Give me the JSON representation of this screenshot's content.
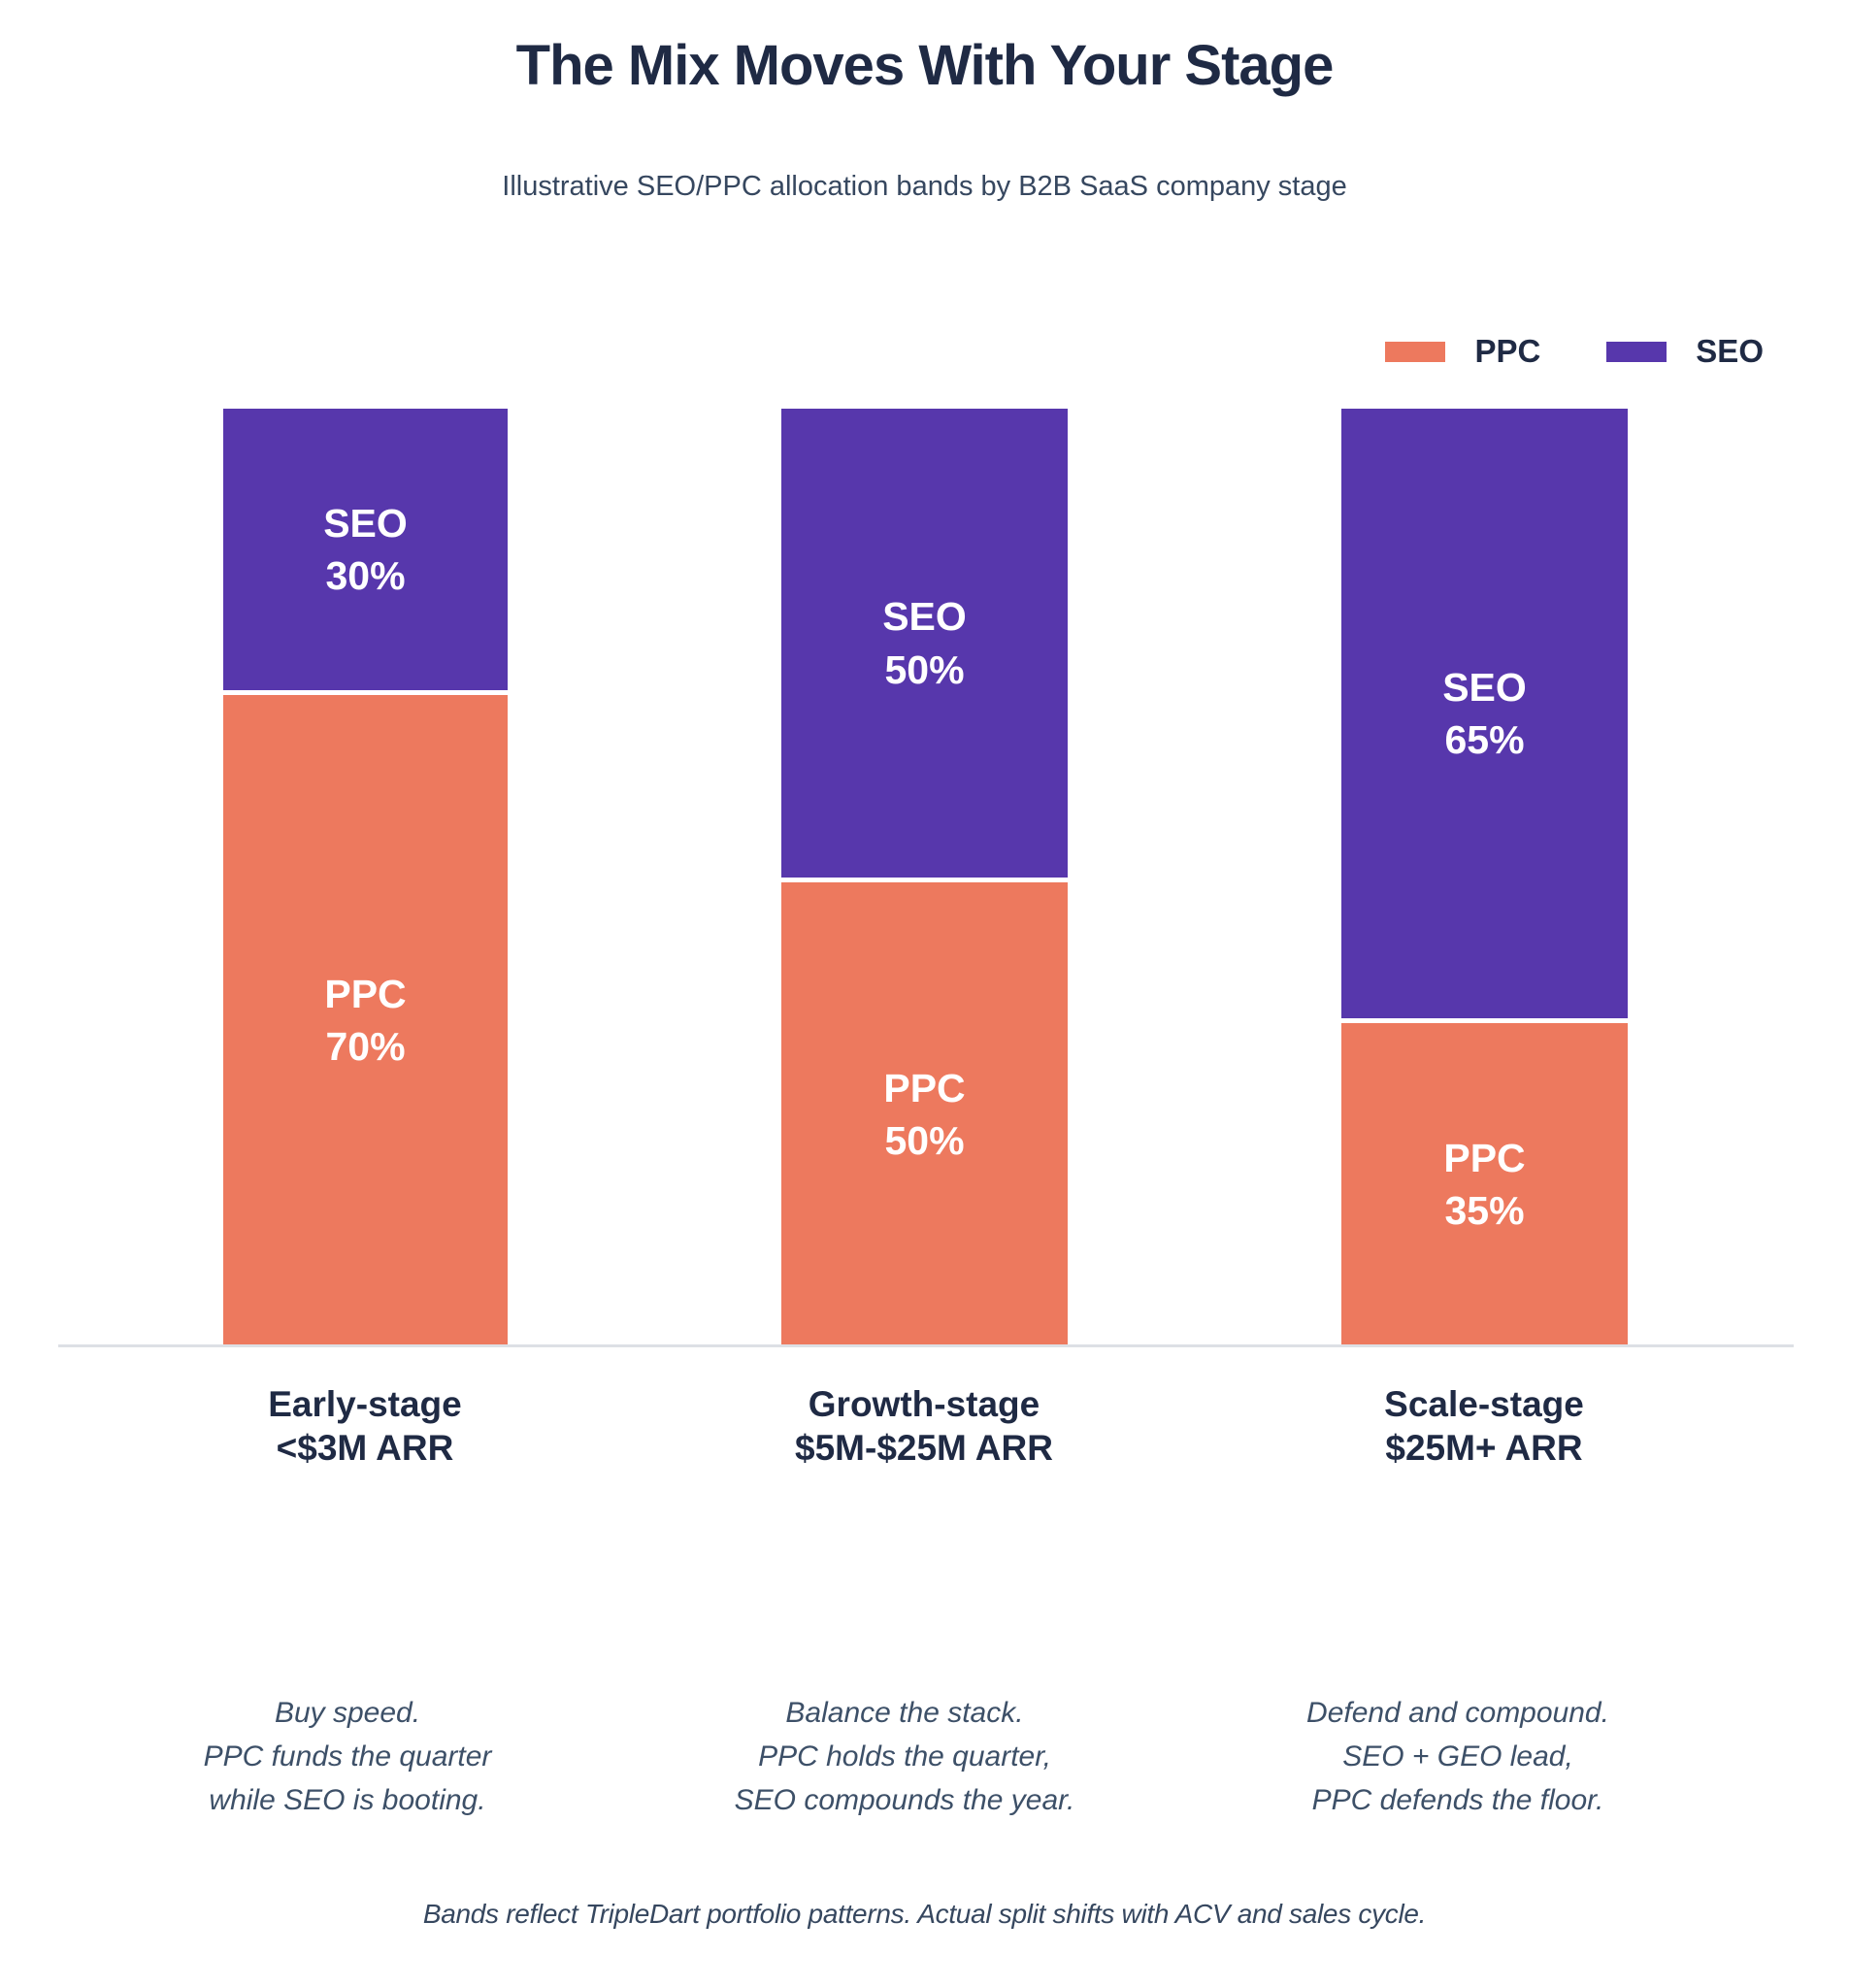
{
  "title": "The Mix Moves With Your Stage",
  "subtitle": "Illustrative SEO/PPC allocation bands by B2B SaaS company stage",
  "legend": {
    "ppc_label": "PPC",
    "seo_label": "SEO"
  },
  "colors": {
    "ppc": "#ED795E",
    "seo": "#5737AC",
    "title_text": "#1F2A44",
    "caption_text": "#3D5068",
    "axis_line": "#DDE0E5",
    "bar_value_text": "#FFFFFF"
  },
  "footer": "Bands reflect TripleDart portfolio patterns. Actual split shifts with ACV and sales cycle.",
  "chart_data": {
    "type": "bar",
    "stacked": true,
    "unit": "%",
    "ylim": [
      0,
      100
    ],
    "grid": false,
    "legend_position": "top-right",
    "x": [
      "Early-stage <$3M ARR",
      "Growth-stage $5M-$25M ARR",
      "Scale-stage $25M+ ARR"
    ],
    "series": [
      {
        "name": "PPC",
        "values": [
          70,
          50,
          35
        ]
      },
      {
        "name": "SEO",
        "values": [
          30,
          50,
          65
        ]
      }
    ],
    "bars": [
      {
        "stage": "Early-stage",
        "arr": "<$3M ARR",
        "seo_pct": 30,
        "ppc_pct": 70,
        "seo_label_line1": "SEO",
        "seo_label_line2": "30%",
        "ppc_label_line1": "PPC",
        "ppc_label_line2": "70%",
        "caption_lines": [
          "Buy speed.",
          "PPC funds the quarter",
          "while SEO is booting."
        ]
      },
      {
        "stage": "Growth-stage",
        "arr": "$5M-$25M ARR",
        "seo_pct": 50,
        "ppc_pct": 50,
        "seo_label_line1": "SEO",
        "seo_label_line2": "50%",
        "ppc_label_line1": "PPC",
        "ppc_label_line2": "50%",
        "caption_lines": [
          "Balance the stack.",
          "PPC holds the quarter,",
          "SEO compounds the year."
        ]
      },
      {
        "stage": "Scale-stage",
        "arr": "$25M+ ARR",
        "seo_pct": 65,
        "ppc_pct": 35,
        "seo_label_line1": "SEO",
        "seo_label_line2": "65%",
        "ppc_label_line1": "PPC",
        "ppc_label_line2": "35%",
        "caption_lines": [
          "Defend and compound.",
          "SEO + GEO lead,",
          "PPC defends the floor."
        ]
      }
    ]
  }
}
